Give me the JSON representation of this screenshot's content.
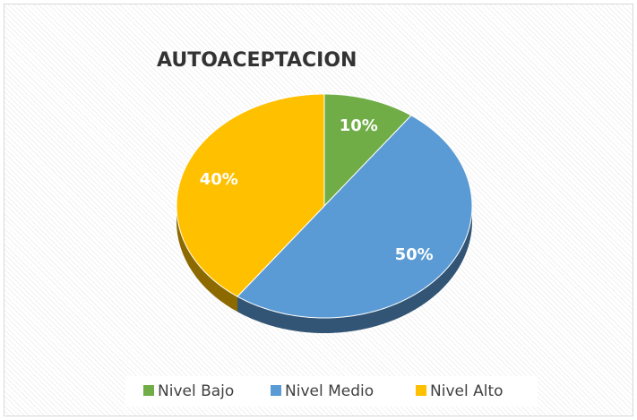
{
  "chart_data": {
    "type": "pie",
    "title": "AUTOACEPTACION",
    "categories": [
      "Nivel Bajo",
      "Nivel Medio",
      "Nivel Alto"
    ],
    "values": [
      10,
      50,
      40
    ],
    "value_labels": [
      "10%",
      "50%",
      "40%"
    ],
    "colors": [
      "#70ad47",
      "#5b9bd5",
      "#ffc000"
    ],
    "legend": "bottom"
  }
}
